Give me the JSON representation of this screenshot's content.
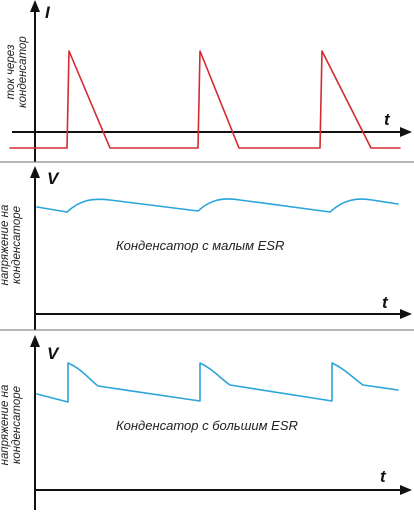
{
  "colors": {
    "current_trace": "#d42a32",
    "voltage_trace": "#2aa5dc",
    "axes": "#111111",
    "divider": "#6f6f6f"
  },
  "panels": [
    {
      "id": "current",
      "vertical_axis_label": "I",
      "horizontal_axis_label": "t",
      "side_label_line1": "ток через",
      "side_label_line2": "конденсатор",
      "caption": ""
    },
    {
      "id": "voltage-low-esr",
      "vertical_axis_label": "V",
      "horizontal_axis_label": "t",
      "side_label_line1": "напряжение на",
      "side_label_line2": "конденсаторе",
      "caption": "Конденсатор с малым ESR"
    },
    {
      "id": "voltage-high-esr",
      "vertical_axis_label": "V",
      "horizontal_axis_label": "t",
      "side_label_line1": "напряжение на",
      "side_label_line2": "конденсаторе",
      "caption": "Конденсатор с большим ESR"
    }
  ]
}
